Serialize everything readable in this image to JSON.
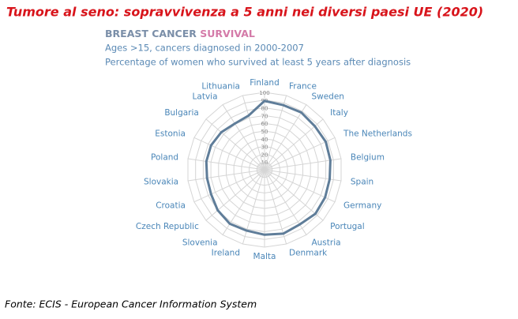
{
  "chart_data": {
    "type": "radar",
    "title": "Tumore al seno: sopravvivenza a 5 anni nei diversi paesi UE (2020)",
    "subtitle_part1": "BREAST CANCER",
    "subtitle_part2": "SURVIVAL",
    "note1": "Ages >15, cancers diagnosed in 2000-2007",
    "note2": "Percentage of women who survived at least 5 years after diagnosis",
    "source": "Fonte: ECIS - European Cancer Information System",
    "categories": [
      "Finland",
      "France",
      "Sweden",
      "Italy",
      "The Netherlands",
      "Belgium",
      "Spain",
      "Germany",
      "Portugal",
      "Austria",
      "Denmark",
      "Malta",
      "Ireland",
      "Slovenia",
      "Czech Republic",
      "Croatia",
      "Slovakia",
      "Poland",
      "Estonia",
      "Bulgaria",
      "Latvia",
      "Lithuania"
    ],
    "values": [
      89,
      87,
      88,
      86,
      87,
      86,
      85,
      86,
      87,
      84,
      86,
      84,
      82,
      83,
      80,
      76,
      75,
      76,
      76,
      74,
      71,
      73
    ],
    "color": "#5f7d99",
    "rlim": [
      0,
      100
    ],
    "rticks": [
      10,
      20,
      30,
      40,
      50,
      60,
      70,
      80,
      90,
      100
    ],
    "grid": true
  }
}
